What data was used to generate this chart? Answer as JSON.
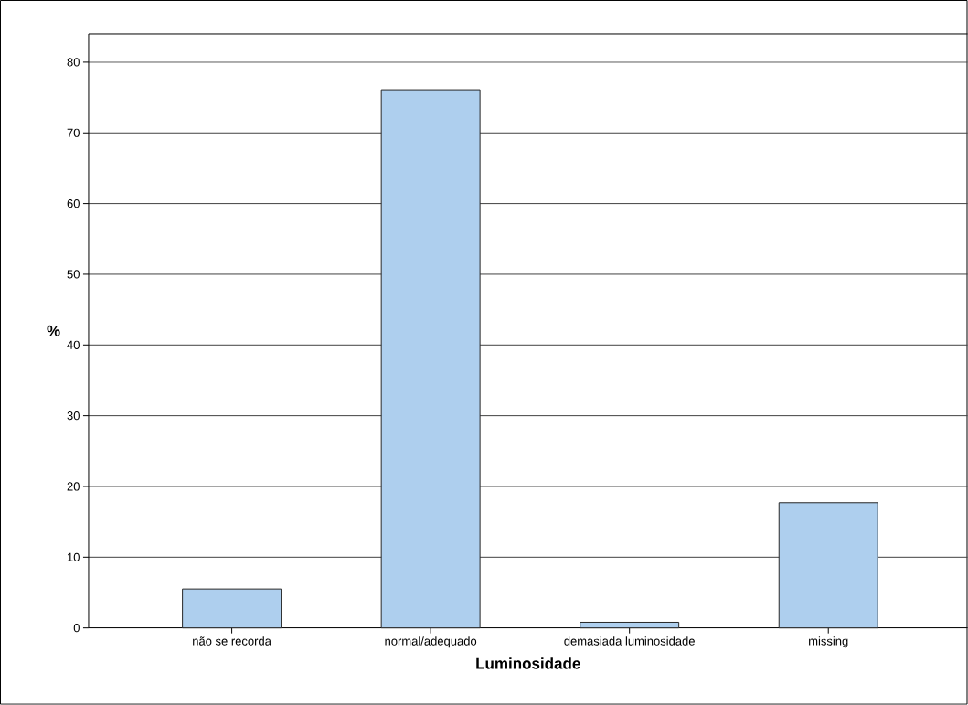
{
  "chart_data": {
    "type": "bar",
    "xlabel": "Luminosidade",
    "ylabel": "%",
    "categories": [
      "não se recorda",
      "normal/adequado",
      "demasiada luminosidade",
      "missing"
    ],
    "values": [
      5.5,
      76.1,
      0.8,
      17.7
    ],
    "color": "#aecfee",
    "ylim": [
      0,
      84
    ],
    "yticks": [
      0,
      10,
      20,
      30,
      40,
      50,
      60,
      70,
      80
    ],
    "grid": "y"
  }
}
